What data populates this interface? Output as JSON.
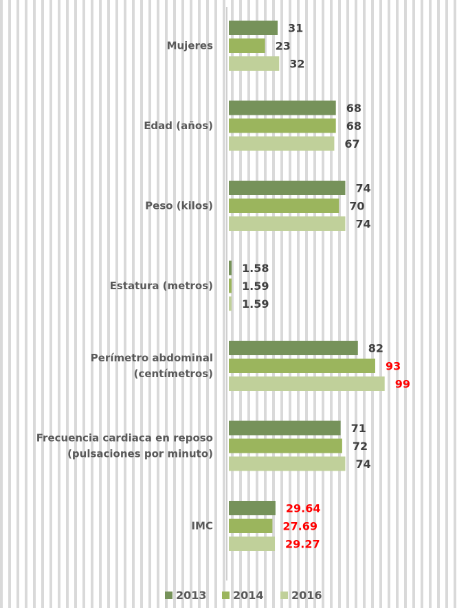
{
  "chart_data": {
    "type": "bar",
    "orientation": "horizontal",
    "categories": [
      [
        "Mujeres"
      ],
      [
        "Edad (años)"
      ],
      [
        "Peso (kilos)"
      ],
      [
        "Estatura (metros)"
      ],
      [
        "Perímetro abdominal",
        "(centímetros)"
      ],
      [
        "Frecuencia cardiaca en reposo",
        "(pulsaciones por minuto)"
      ],
      [
        "IMC"
      ]
    ],
    "series": [
      {
        "name": "2013",
        "color": "#76925a",
        "values": [
          31,
          68,
          74,
          1.58,
          82,
          71,
          29.64
        ],
        "labels": [
          "31",
          "68",
          "74",
          "1.58",
          "82",
          "71",
          "29.64"
        ],
        "label_colors": [
          "#404040",
          "#404040",
          "#404040",
          "#404040",
          "#404040",
          "#404040",
          "#ff0000"
        ]
      },
      {
        "name": "2014",
        "color": "#9bb55d",
        "values": [
          23,
          68,
          70,
          1.59,
          93,
          72,
          27.69
        ],
        "labels": [
          "23",
          "68",
          "70",
          "1.59",
          "93",
          "72",
          "27.69"
        ],
        "label_colors": [
          "#404040",
          "#404040",
          "#404040",
          "#404040",
          "#ff0000",
          "#404040",
          "#ff0000"
        ]
      },
      {
        "name": "2016",
        "color": "#c0d09a",
        "values": [
          32,
          67,
          74,
          1.59,
          99,
          74,
          29.27
        ],
        "labels": [
          "32",
          "67",
          "74",
          "1.59",
          "99",
          "74",
          "29.27"
        ],
        "label_colors": [
          "#404040",
          "#404040",
          "#404040",
          "#404040",
          "#ff0000",
          "#404040",
          "#ff0000"
        ]
      }
    ],
    "xlim": [
      0,
      100
    ],
    "legend_position": "bottom",
    "grid": false
  }
}
